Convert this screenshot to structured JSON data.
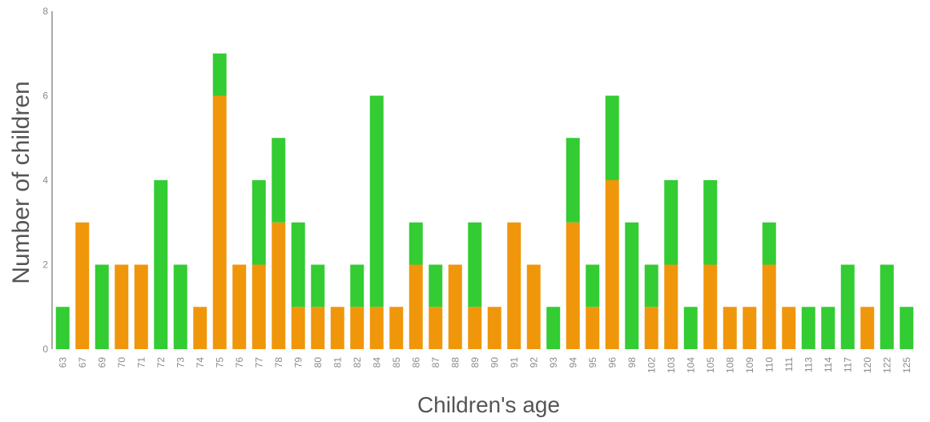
{
  "colors": {
    "orange": "#f0960a",
    "green": "#33cc33",
    "axis": "#555555",
    "tick_text": "#8a8a8a"
  },
  "chart_data": {
    "type": "bar",
    "stacked": true,
    "xlabel": "Children's age",
    "ylabel": "Number of children",
    "ylim": [
      0,
      8
    ],
    "yticks": [
      "0",
      "2",
      "4",
      "6",
      "8"
    ],
    "grid": false,
    "categories": [
      "63",
      "67",
      "69",
      "70",
      "71",
      "72",
      "73",
      "74",
      "75",
      "76",
      "77",
      "78",
      "79",
      "80",
      "81",
      "82",
      "84",
      "85",
      "86",
      "87",
      "88",
      "89",
      "90",
      "91",
      "92",
      "93",
      "94",
      "95",
      "96",
      "98",
      "102",
      "103",
      "104",
      "105",
      "108",
      "109",
      "110",
      "111",
      "113",
      "114",
      "117",
      "120",
      "122",
      "125"
    ],
    "series": [
      {
        "color": "#f0960a",
        "values": [
          0,
          3,
          0,
          2,
          2,
          0,
          0,
          1,
          6,
          2,
          2,
          3,
          1,
          1,
          1,
          1,
          1,
          1,
          2,
          1,
          2,
          1,
          1,
          3,
          2,
          0,
          3,
          1,
          4,
          0,
          1,
          2,
          0,
          2,
          1,
          1,
          2,
          1,
          0,
          0,
          0,
          1,
          0,
          0
        ]
      },
      {
        "color": "#33cc33",
        "values": [
          1,
          0,
          2,
          0,
          0,
          4,
          2,
          0,
          1,
          0,
          2,
          2,
          2,
          1,
          0,
          1,
          5,
          0,
          1,
          1,
          0,
          2,
          0,
          0,
          0,
          1,
          2,
          1,
          2,
          3,
          1,
          2,
          1,
          2,
          0,
          0,
          1,
          0,
          1,
          1,
          2,
          0,
          2,
          1
        ]
      }
    ]
  }
}
